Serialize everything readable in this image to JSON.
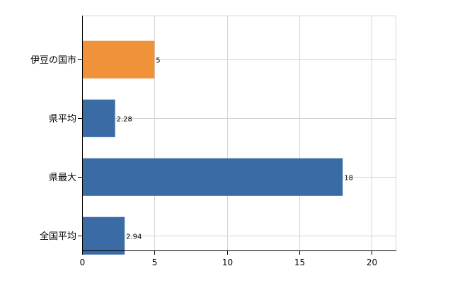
{
  "chart_data": {
    "type": "bar",
    "orientation": "horizontal",
    "categories": [
      "伊豆の国市",
      "県平均",
      "県最大",
      "全国平均"
    ],
    "values": [
      5,
      2.28,
      18,
      2.94
    ],
    "value_labels": [
      "5",
      "2.28",
      "18",
      "2.94"
    ],
    "bar_colors": [
      "#f0923a",
      "#3a6ba5",
      "#3a6ba5",
      "#3a6ba5"
    ],
    "xlim": [
      0,
      21.7
    ],
    "xticks": [
      0,
      5,
      10,
      15,
      20
    ],
    "xtick_labels": [
      "0",
      "5",
      "10",
      "15",
      "20"
    ],
    "grid": true,
    "title": "",
    "xlabel": "",
    "ylabel": ""
  }
}
